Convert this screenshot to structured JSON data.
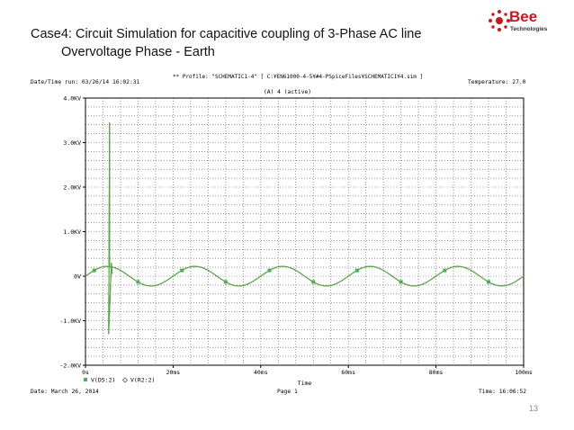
{
  "slide": {
    "title_line1": "Case4: Circuit Simulation for capacitive coupling of 3-Phase AC line",
    "title_line2": "Overvoltage Phase - Earth",
    "page_number": "13"
  },
  "logo": {
    "word": "Bee",
    "sub": "Technologies",
    "brand_color": "#c8161d"
  },
  "probe_header": {
    "datetime_run": "Date/Time run: 03/26/14 16:02:31",
    "profile": "** Profile: \"SCHEMATIC1-4\"  [ C:¥EN61000-4-5¥#4-PSpiceFiles¥SCHEMATIC1¥4.sim ]",
    "temperature": "Temperature: 27.0",
    "section": "(A) 4 (active)"
  },
  "probe_footer": {
    "date": "Date: March 26, 2014",
    "page": "Page 1",
    "time": "Time: 16:06:52"
  },
  "chart_data": {
    "type": "line",
    "title": "",
    "xlabel": "Time",
    "ylabel": "",
    "xlim": [
      0,
      100
    ],
    "ylim": [
      -2.0,
      4.0
    ],
    "x_unit": "ms",
    "y_unit": "kV",
    "x_ticks": [
      0,
      20,
      40,
      60,
      80,
      100
    ],
    "x_tick_labels": [
      "0s",
      "20ms",
      "40ms",
      "60ms",
      "80ms",
      "100ms"
    ],
    "y_ticks": [
      4.0,
      3.0,
      2.0,
      1.0,
      0,
      -1.0,
      -2.0
    ],
    "y_tick_labels": [
      "4.0KV",
      "3.0KV",
      "2.0KV",
      "1.0KV",
      "0V",
      "-1.0KV",
      "-2.0KV"
    ],
    "grid": true,
    "legend_position": "bottom-left",
    "series": [
      {
        "name": "V(D5:2)",
        "color": "#4caf50",
        "marker": "square",
        "amplitude_kv": 0.22,
        "period_ms": 20,
        "phase_offset_ms": 0,
        "spike_at_ms": [
          5.5
        ],
        "spike_max_kv": 3.45,
        "spike_min_kv": -1.3
      },
      {
        "name": "V(R2:2)",
        "color": "#c0392b",
        "marker": "diamond",
        "amplitude_kv": 0.22,
        "period_ms": 20,
        "phase_offset_ms": 0,
        "spike_at_ms": [
          5.5
        ],
        "spike_max_kv": 3.45,
        "spike_min_kv": -1.3
      }
    ]
  }
}
